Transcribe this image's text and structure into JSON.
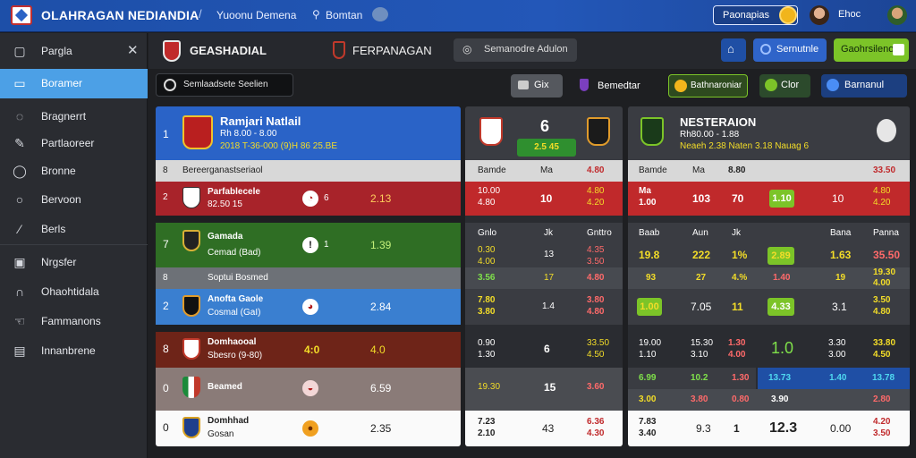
{
  "topbar": {
    "brand": "OLAHRAGAN NEDIANDIA",
    "separator": "/",
    "nav_1": "Yuoonu Demena",
    "nav_2": "Bomtan",
    "promo": "Paonapias",
    "user": "Ehoc"
  },
  "sidebar": {
    "items": [
      {
        "label": "Pargla",
        "icon": "layout-icon"
      },
      {
        "label": "Boramer",
        "icon": "monitor-icon"
      },
      {
        "label": "Bragnerrt",
        "icon": "ball-icon"
      },
      {
        "label": "Partlaoreer",
        "icon": "pen-icon"
      },
      {
        "label": "Bronne",
        "icon": "chat-icon"
      },
      {
        "label": "Bervoon",
        "icon": "bubble-icon"
      },
      {
        "label": "Berls",
        "icon": "tool-icon"
      },
      {
        "label": "Nrgsfer",
        "icon": "screen-icon"
      },
      {
        "label": "Ohaohtidala",
        "icon": "headset-icon"
      },
      {
        "label": "Fammanons",
        "icon": "hand-icon"
      },
      {
        "label": "Innanbrene",
        "icon": "table-icon"
      }
    ]
  },
  "header": {
    "title_1": "GEASHADIAL",
    "title_2": "FERPANAGAN",
    "search": "Semanodre Adulon",
    "filter": "Sernutnle",
    "live_btn": "Gaohrsilenolis"
  },
  "subbar": {
    "toggle": "Semlaadsete Seelien",
    "btn_1": "Gix",
    "btn_2": "Bemedtar",
    "btn_3": "Bathnaroniar",
    "btn_4": "Clor",
    "btn_5": "Barnanul"
  },
  "left_panel": {
    "featured": {
      "index": "1",
      "name": "Ramjari Natlail",
      "line1": "Rh 8.00 - 8.00",
      "line2": "2018 T-36-000  (9)H 86 25.BE"
    },
    "rows": [
      {
        "index": "8",
        "label": "Bereerganastseriaol"
      },
      {
        "index": "2",
        "name": "Parfablecele",
        "sub": "82.50 15",
        "num": "6",
        "odds": "2.13"
      },
      {
        "index": "7",
        "name": "Gamada",
        "sub": "Cemad (Bad)",
        "num": "1",
        "odds": "1.39"
      },
      {
        "index": "8",
        "label": "Soptui Bosmed"
      },
      {
        "index": "2",
        "name": "Anofta Gaole",
        "sub": "Cosmal (GaI)",
        "odds": "2.84"
      },
      {
        "index": "8",
        "name": "Domhaooal",
        "sub": "Sbesro (9-80)",
        "num": "4:0",
        "odds": "4.0"
      },
      {
        "index": "0",
        "name": "Beamed",
        "sub": "",
        "odds": "6.59"
      },
      {
        "index": "0",
        "name": "Domhhad",
        "sub": "Gosan",
        "odds": "2.35"
      }
    ]
  },
  "mid_panel": {
    "score": "6",
    "score_sub": "2.5 45",
    "headers": [
      "Bamde",
      "Ma",
      "4.80"
    ],
    "rows": [
      [
        "10.00\n4.80",
        "10",
        "4.80\n4.20"
      ],
      [
        "Gnlo",
        "Jk",
        "Gnttro"
      ],
      [
        "0.30\n4.00",
        "13",
        "4.35\n3.50"
      ],
      [
        "3.56",
        "17",
        "4.80"
      ],
      [
        "7.80\n3.80",
        "1.4",
        "3.80\n4.80"
      ],
      [
        "0.90\n1.30",
        "6",
        "33.50\n4.50"
      ],
      [
        "19.30",
        "15",
        "3.60"
      ],
      [
        "7.23\n2.10",
        "43",
        "6.36\n4.30"
      ]
    ]
  },
  "right_panel": {
    "title": "NESTERAION",
    "line1": "Rh80.00 - 1.88",
    "line2": "Neaeh 2.38 Naten  3.18 Nauag 6",
    "headers": [
      "Bamde",
      "Ma",
      "8.80",
      "33.50"
    ],
    "rows": [
      [
        "Ma\n1.00",
        "103",
        "70",
        "1.10",
        "10",
        "4.80\n4.20"
      ],
      [
        "Baab",
        "Aun",
        "Jk",
        "Bana",
        "Panna"
      ],
      [
        "19.8",
        "222",
        "1%",
        "2.89",
        "1.63",
        "35.50"
      ],
      [
        "93",
        "27",
        "4.%",
        "1.40",
        "19",
        "19.30\n4.00"
      ],
      [
        "1.00",
        "7.05",
        "11",
        "4.33",
        "3.1",
        "3.50\n4.80"
      ],
      [
        "19.00\n1.10",
        "15.30\n3.10",
        "1.30\n4.00",
        "1.0",
        "3.30\n3.00",
        "33.80\n4.50"
      ],
      [
        "6.99",
        "10.2",
        "1.30",
        "13.73",
        "1.40",
        "13.78"
      ],
      [
        "3.00",
        "3.80",
        "0.80",
        "3.90",
        "2.80"
      ],
      [
        "7.83\n3.40",
        "9.3",
        "1",
        "12.3",
        "0.00",
        "4.20\n3.50"
      ]
    ]
  },
  "colors": {
    "accent_blue": "#2357b8",
    "live_green": "#7cc428",
    "odds_red": "#c0292b"
  }
}
